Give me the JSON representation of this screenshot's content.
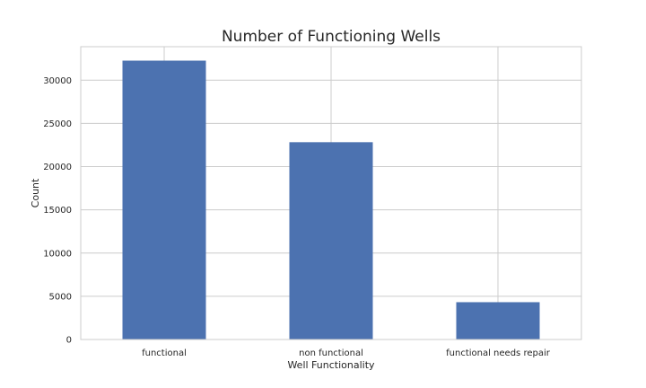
{
  "chart_data": {
    "type": "bar",
    "title": "Number of Functioning Wells",
    "xlabel": "Well Functionality",
    "ylabel": "Count",
    "categories": [
      "functional",
      "non functional",
      "functional needs repair"
    ],
    "values": [
      32259,
      22824,
      4317
    ],
    "ylim": [
      0,
      33871
    ],
    "yticks": [
      0,
      5000,
      10000,
      15000,
      20000,
      25000,
      30000
    ],
    "grid": true,
    "bar_color": "#4c72b0",
    "grid_color": "#cccccc"
  }
}
